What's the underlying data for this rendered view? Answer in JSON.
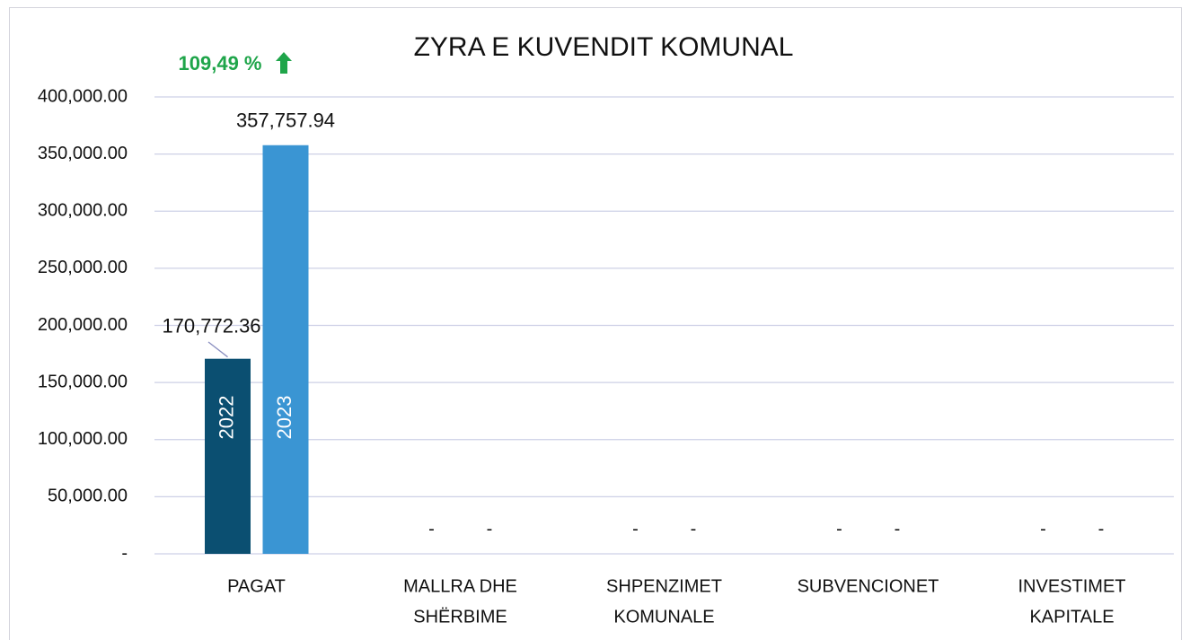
{
  "chart_data": {
    "type": "bar",
    "title": "ZYRA E KUVENDIT KOMUNAL",
    "annotation": "109,49 %",
    "categories": [
      [
        "PAGAT"
      ],
      [
        "MALLRA DHE",
        "SHËRBIME"
      ],
      [
        "SHPENZIMET",
        "KOMUNALE"
      ],
      [
        "SUBVENCIONET"
      ],
      [
        "INVESTIMET",
        "KAPITALE"
      ]
    ],
    "series": [
      {
        "name": "2022",
        "color": "#0b4f71",
        "values": [
          170772.36,
          0,
          0,
          0,
          0
        ],
        "value_labels": [
          "170,772.36",
          "-",
          "-",
          "-",
          "-"
        ]
      },
      {
        "name": "2023",
        "color": "#3a95d3",
        "values": [
          357757.94,
          0,
          0,
          0,
          0
        ],
        "value_labels": [
          "357,757.94",
          "-",
          "-",
          "-",
          "-"
        ]
      }
    ],
    "ylim": [
      0,
      400000
    ],
    "yticks": [
      {
        "value": 0,
        "label": "-"
      },
      {
        "value": 50000,
        "label": "50,000.00"
      },
      {
        "value": 100000,
        "label": "100,000.00"
      },
      {
        "value": 150000,
        "label": "150,000.00"
      },
      {
        "value": 200000,
        "label": "200,000.00"
      },
      {
        "value": 250000,
        "label": "250,000.00"
      },
      {
        "value": 300000,
        "label": "300,000.00"
      },
      {
        "value": 350000,
        "label": "350,000.00"
      },
      {
        "value": 400000,
        "label": "400,000.00"
      }
    ],
    "grid": true
  }
}
